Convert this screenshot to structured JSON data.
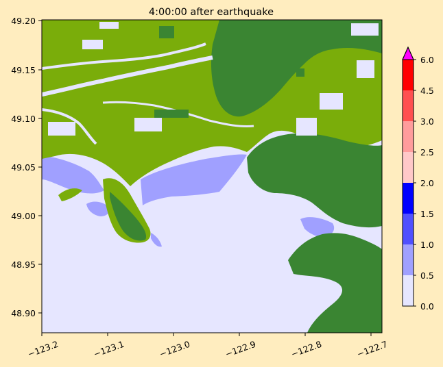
{
  "title": "4:00:00 after earthquake",
  "map": {
    "x_ticks": [
      "−123.2",
      "−123.1",
      "−123.0",
      "−122.9",
      "−122.8",
      "−122.7"
    ],
    "y_ticks": [
      "49.20",
      "49.15",
      "49.10",
      "49.05",
      "49.00",
      "48.95",
      "48.90"
    ],
    "xlim": [
      -123.2,
      -122.69
    ],
    "ylim": [
      48.88,
      49.2
    ],
    "colors": {
      "land_light": "#7aad0a",
      "land_dark": "#3a8532",
      "water": "#e6e6ff",
      "frame": "#000000"
    }
  },
  "colorbar": {
    "ticks": [
      "0.0",
      "0.5",
      "1.0",
      "1.5",
      "2.0",
      "2.5",
      "3.0",
      "4.5",
      "6.0"
    ],
    "bins": [
      {
        "color": "#e6e6ff"
      },
      {
        "color": "#a0a0ff"
      },
      {
        "color": "#5050ff"
      },
      {
        "color": "#0000ff"
      },
      {
        "color": "#ffc8c8"
      },
      {
        "color": "#ff9c9c"
      },
      {
        "color": "#ff5050"
      },
      {
        "color": "#ff0000"
      }
    ],
    "extend_color": "#ff00ff",
    "extend": "max"
  }
}
